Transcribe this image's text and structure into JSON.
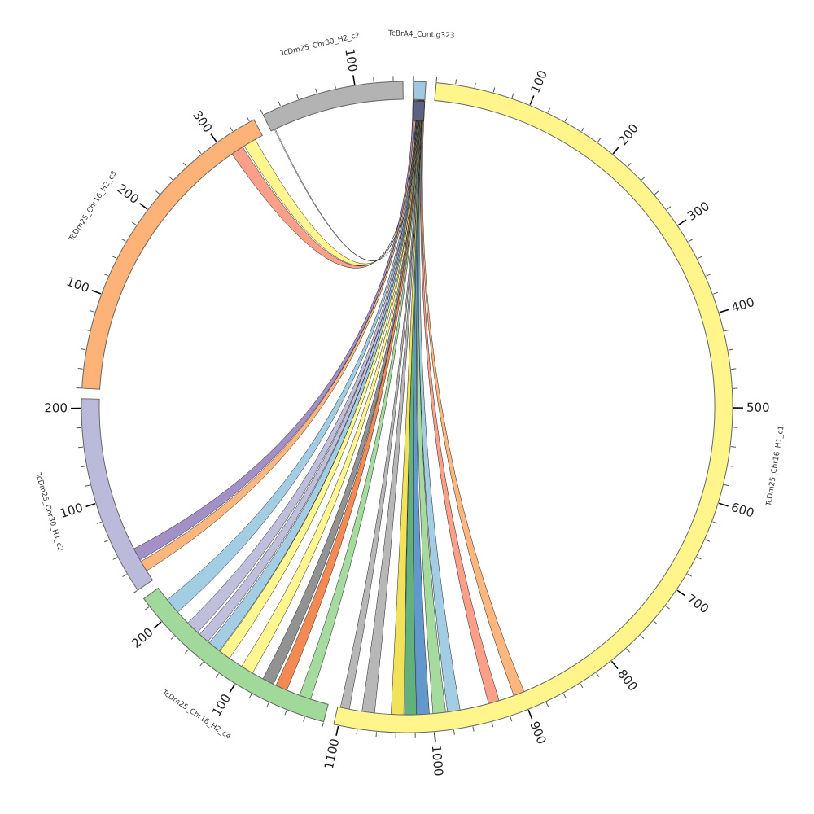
{
  "chart_data": {
    "type": "chord",
    "title": "",
    "degrees_per_unit": 0.17,
    "tick_major": 100,
    "tick_minor": 20,
    "chromosomes": [
      {
        "name": "TcBrA4_Contig323",
        "length": 13,
        "color": "#9ecae1",
        "inner_track_color": "#5c6380"
      },
      {
        "name": "TcDm25_Chr16_H1_c1",
        "length": 1105,
        "color": "#fff58a"
      },
      {
        "name": "TcDm25_Chr16_H2_c4",
        "length": 230,
        "color": "#a1d99b"
      },
      {
        "name": "TcDm25_Chr30_H1_c2",
        "length": 210,
        "color": "#bcbadb"
      },
      {
        "name": "TcDm25_Chr16_H2_c3",
        "length": 345,
        "color": "#fdb277"
      },
      {
        "name": "TcDm25_Chr30_H2_c2",
        "length": 150,
        "color": "#b3b3b3"
      }
    ],
    "links": [
      {
        "source": [
          0,
          1.5
        ],
        "target_chr": 4,
        "target": [
          306,
          320
        ],
        "color": "#fb9a82"
      },
      {
        "source": [
          1.5,
          3
        ],
        "target_chr": 4,
        "target": [
          322,
          336
        ],
        "color": "#fff58a"
      },
      {
        "source": [
          3,
          3.3
        ],
        "target_chr": 5,
        "target": [
          4,
          5
        ],
        "color": "#ffffff"
      },
      {
        "source": [
          0.5,
          2.5
        ],
        "target_chr": 3,
        "target": [
          26,
          40
        ],
        "color": "#9e8ac4"
      },
      {
        "source": [
          2.5,
          4
        ],
        "target_chr": 3,
        "target": [
          12,
          24
        ],
        "color": "#fdb277"
      },
      {
        "source": [
          4,
          5
        ],
        "target_chr": 2,
        "target": [
          196,
          214
        ],
        "color": "#9ecae1"
      },
      {
        "source": [
          4.5,
          5.5
        ],
        "target_chr": 2,
        "target": [
          165,
          180
        ],
        "color": "#bcbadb"
      },
      {
        "source": [
          5,
          6
        ],
        "target_chr": 2,
        "target": [
          150,
          162
        ],
        "color": "#bcbadb"
      },
      {
        "source": [
          5.5,
          6.5
        ],
        "target_chr": 2,
        "target": [
          134,
          148
        ],
        "color": "#9ecae1"
      },
      {
        "source": [
          6,
          7
        ],
        "target_chr": 2,
        "target": [
          120,
          133
        ],
        "color": "#fff58a"
      },
      {
        "source": [
          6.5,
          7.5
        ],
        "target_chr": 2,
        "target": [
          90,
          104
        ],
        "color": "#fff58a"
      },
      {
        "source": [
          7,
          8
        ],
        "target_chr": 2,
        "target": [
          64,
          77
        ],
        "color": "#8c8c8c"
      },
      {
        "source": [
          7.5,
          8.5
        ],
        "target_chr": 2,
        "target": [
          48,
          61
        ],
        "color": "#f2844a"
      },
      {
        "source": [
          8,
          9
        ],
        "target_chr": 2,
        "target": [
          20,
          33
        ],
        "color": "#a1d99b"
      },
      {
        "source": [
          8.5,
          9.5
        ],
        "target_chr": 1,
        "target": [
          1092,
          1102
        ],
        "color": "#b3b3b3"
      },
      {
        "source": [
          9,
          10
        ],
        "target_chr": 1,
        "target": [
          1064,
          1078
        ],
        "color": "#b3b3b3"
      },
      {
        "source": [
          9.5,
          10.5
        ],
        "target_chr": 1,
        "target": [
          1032,
          1046
        ],
        "color": "#f0e050"
      },
      {
        "source": [
          10,
          11
        ],
        "target_chr": 1,
        "target": [
          1017,
          1031
        ],
        "color": "#5aad75"
      },
      {
        "source": [
          10.3,
          11.3
        ],
        "target_chr": 1,
        "target": [
          1004,
          1018
        ],
        "color": "#5b92c9"
      },
      {
        "source": [
          10.6,
          11.6
        ],
        "target_chr": 1,
        "target": [
          986,
          1000
        ],
        "color": "#a1d99b"
      },
      {
        "source": [
          11,
          12
        ],
        "target_chr": 1,
        "target": [
          970,
          984
        ],
        "color": "#9ecae1"
      },
      {
        "source": [
          11.5,
          12.5
        ],
        "target_chr": 1,
        "target": [
          926,
          938
        ],
        "color": "#fb9a82"
      },
      {
        "source": [
          12,
          13
        ],
        "target_chr": 1,
        "target": [
          897,
          909
        ],
        "color": "#fdb277"
      }
    ]
  }
}
